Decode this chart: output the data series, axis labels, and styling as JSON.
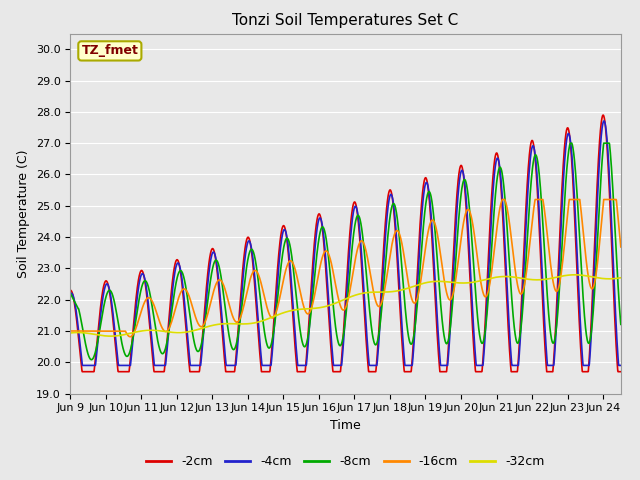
{
  "title": "Tonzi Soil Temperatures Set C",
  "xlabel": "Time",
  "ylabel": "Soil Temperature (C)",
  "annotation_label": "TZ_fmet",
  "annotation_box_color": "#ffffcc",
  "annotation_text_color": "#800000",
  "annotation_border_color": "#aaaa00",
  "ylim": [
    19.0,
    30.5
  ],
  "yticks": [
    19.0,
    20.0,
    21.0,
    22.0,
    23.0,
    24.0,
    25.0,
    26.0,
    27.0,
    28.0,
    29.0,
    30.0
  ],
  "xlim_days": [
    0,
    15.5
  ],
  "x_tick_labels": [
    "Jun 9",
    "Jun 10",
    "Jun 11",
    "Jun 12",
    "Jun 13",
    "Jun 14",
    "Jun 15",
    "Jun 16",
    "Jun 17",
    "Jun 18",
    "Jun 19",
    "Jun 20",
    "Jun 21",
    "Jun 22",
    "Jun 23",
    "Jun 24"
  ],
  "x_tick_positions": [
    0,
    1,
    2,
    3,
    4,
    5,
    6,
    7,
    8,
    9,
    10,
    11,
    12,
    13,
    14,
    15
  ],
  "line_colors": [
    "#dd0000",
    "#2222cc",
    "#00aa00",
    "#ff8800",
    "#dddd00"
  ],
  "line_labels": [
    "-2cm",
    "-4cm",
    "-8cm",
    "-16cm",
    "-32cm"
  ],
  "line_widths": [
    1.2,
    1.2,
    1.2,
    1.2,
    1.2
  ],
  "plot_bg_color": "#e8e8e8",
  "grid_color": "#ffffff",
  "title_fontsize": 11,
  "label_fontsize": 9,
  "tick_fontsize": 8,
  "legend_fontsize": 9
}
